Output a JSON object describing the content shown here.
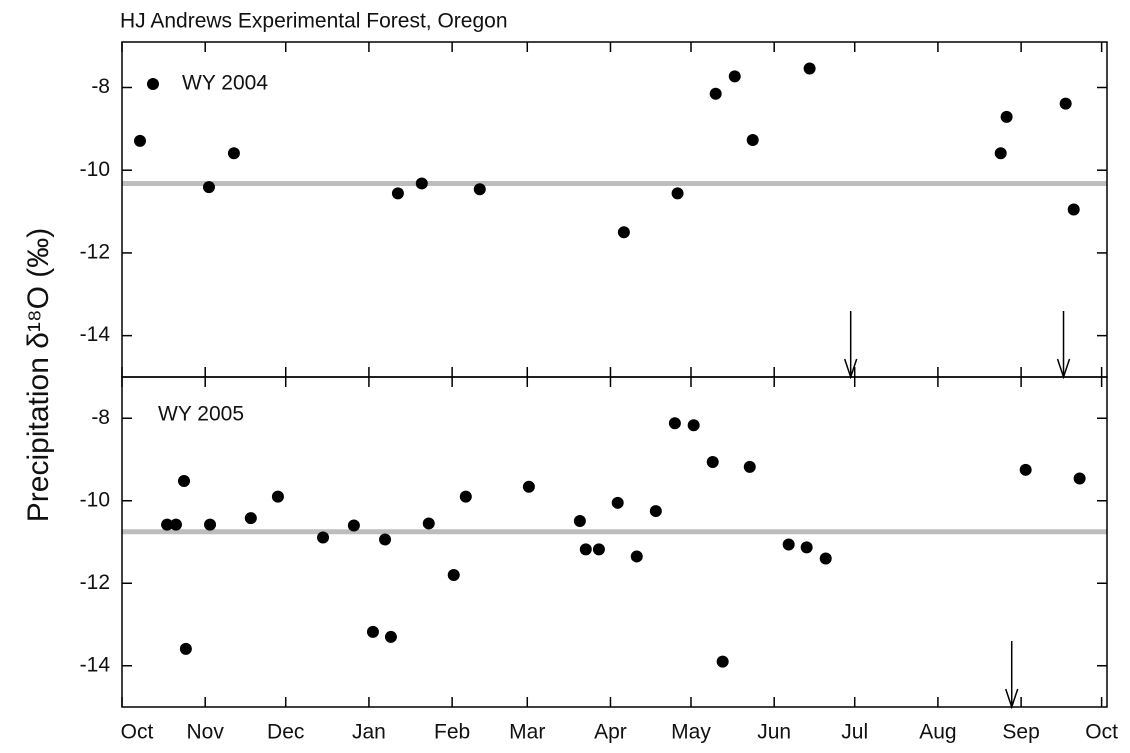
{
  "chart_data": [
    {
      "type": "scatter",
      "title": "HJ Andrews Experimental Forest, Oregon",
      "ylabel": "Precipitation δ¹⁸O (‰)",
      "xlim": [
        0,
        367
      ],
      "ylim": [
        -15,
        -6.9
      ],
      "yticks": [
        -8,
        -10,
        -12,
        -14
      ],
      "legend": true,
      "hline": -10.32,
      "hline_color": "#bdbdbd",
      "arrows_x": [
        271.5,
        350.8
      ],
      "series": [
        {
          "name": "WY 2004",
          "color": "#000000",
          "x": [
            6.7,
            32.4,
            41.7,
            102.8,
            111.7,
            133.3,
            187,
            207,
            221.2,
            228.3,
            235,
            256.2,
            327.4,
            329.6,
            351.6,
            354.6
          ],
          "values": [
            -9.29,
            -10.41,
            -9.59,
            -10.56,
            -10.32,
            -10.46,
            -11.5,
            -10.56,
            -8.15,
            -7.73,
            -9.27,
            -7.54,
            -9.59,
            -8.71,
            -8.39,
            -10.95
          ]
        }
      ]
    },
    {
      "type": "scatter",
      "xlim": [
        0,
        367
      ],
      "ylim": [
        -15,
        -7.0
      ],
      "yticks": [
        -8,
        -10,
        -12,
        -14
      ],
      "legend": false,
      "xticks": [
        {
          "value": 0,
          "label": "Oct"
        },
        {
          "value": 31,
          "label": "Nov"
        },
        {
          "value": 61,
          "label": "Dec"
        },
        {
          "value": 92,
          "label": "Jan"
        },
        {
          "value": 123,
          "label": "Feb"
        },
        {
          "value": 151,
          "label": "Mar"
        },
        {
          "value": 182,
          "label": "Apr"
        },
        {
          "value": 212,
          "label": "May"
        },
        {
          "value": 243,
          "label": "Jun"
        },
        {
          "value": 273,
          "label": "Jul"
        },
        {
          "value": 304,
          "label": "Aug"
        },
        {
          "value": 335,
          "label": "Sep"
        },
        {
          "value": 365,
          "label": "Oct"
        }
      ],
      "hline": -10.75,
      "hline_color": "#bdbdbd",
      "arrows_x": [
        331.5
      ],
      "series": [
        {
          "name": "WY 2005",
          "color": "#000000",
          "x": [
            16.8,
            20.1,
            23.1,
            23.8,
            32.8,
            48.0,
            58.1,
            74.9,
            86.4,
            98.0,
            93.5,
            100.2,
            114.3,
            123.6,
            128.1,
            151.6,
            170.6,
            172.8,
            177.7,
            184.7,
            191.8,
            198.9,
            206.0,
            213.0,
            220.1,
            223.8,
            233.9,
            248.4,
            255.1,
            262.2,
            336.7,
            356.8
          ],
          "values": [
            -10.58,
            -10.58,
            -9.52,
            -13.59,
            -10.58,
            -10.42,
            -9.9,
            -10.89,
            -10.6,
            -10.94,
            -13.18,
            -13.3,
            -10.55,
            -11.8,
            -9.9,
            -9.66,
            -10.49,
            -11.18,
            -11.18,
            -10.05,
            -11.35,
            -10.25,
            -8.12,
            -8.17,
            -9.06,
            -13.9,
            -9.18,
            -11.06,
            -11.13,
            -11.4,
            -9.25,
            -9.46
          ]
        }
      ]
    }
  ]
}
